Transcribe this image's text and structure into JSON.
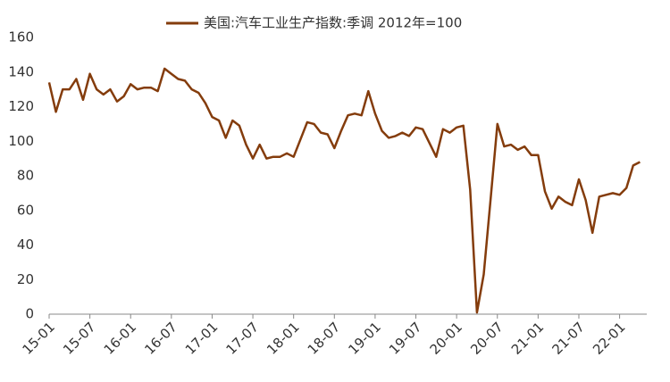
{
  "chart_data": {
    "type": "line",
    "categories": [
      "15-01",
      null,
      null,
      null,
      null,
      null,
      "15-07",
      null,
      null,
      null,
      null,
      null,
      "16-01",
      null,
      null,
      null,
      null,
      null,
      "16-07",
      null,
      null,
      null,
      null,
      null,
      "17-01",
      null,
      null,
      null,
      null,
      null,
      "17-07",
      null,
      null,
      null,
      null,
      null,
      "18-01",
      null,
      null,
      null,
      null,
      null,
      "18-07",
      null,
      null,
      null,
      null,
      null,
      "19-01",
      null,
      null,
      null,
      null,
      null,
      "19-07",
      null,
      null,
      null,
      null,
      null,
      "20-01",
      null,
      null,
      null,
      null,
      null,
      "20-07",
      null,
      null,
      null,
      null,
      null,
      "21-01",
      null,
      null,
      null,
      null,
      null,
      "21-07",
      null,
      null,
      null,
      null,
      null,
      "22-01",
      null,
      null,
      null
    ],
    "series": [
      {
        "name": "美国:汽车工业生产指数:季调 2012年=100",
        "color": "#843c0c",
        "values": [
          134,
          117,
          130,
          130,
          136,
          124,
          139,
          130,
          127,
          130,
          123,
          126,
          133,
          130,
          131,
          131,
          129,
          142,
          139,
          136,
          135,
          130,
          128,
          122,
          114,
          112,
          102,
          112,
          109,
          98,
          90,
          98,
          90,
          91,
          91,
          93,
          91,
          101,
          111,
          110,
          105,
          104,
          96,
          106,
          115,
          116,
          115,
          129,
          116,
          106,
          102,
          103,
          105,
          103,
          108,
          107,
          99,
          91,
          107,
          105,
          108,
          109,
          72,
          1,
          23,
          66,
          110,
          97,
          98,
          95,
          97,
          92,
          92,
          71,
          61,
          68,
          65,
          63,
          78,
          66,
          47,
          68,
          69,
          70,
          69,
          73,
          86,
          88
        ]
      }
    ],
    "ylim": [
      0,
      160
    ],
    "yticks": [
      0,
      20,
      40,
      60,
      80,
      100,
      120,
      140,
      160
    ],
    "grid": false
  }
}
